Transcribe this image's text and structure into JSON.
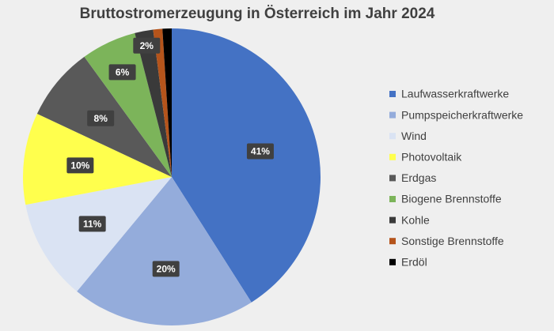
{
  "chart_data": {
    "type": "pie",
    "title": "Bruttostromerzeugung in Österreich im Jahr 2024",
    "categories": [
      "Laufwasserkraftwerke",
      "Pumpspeicherkraftwerke",
      "Wind",
      "Photovoltaik",
      "Erdgas",
      "Biogene Brennstoffe",
      "Kohle",
      "Sonstige Brennstoffe",
      "Erdöl"
    ],
    "values": [
      41,
      20,
      11,
      10,
      8,
      6,
      2,
      1,
      1
    ],
    "value_labels": [
      "41%",
      "20%",
      "11%",
      "10%",
      "8%",
      "6%",
      "2%",
      null,
      null
    ],
    "colors": [
      "#4472c4",
      "#94acdb",
      "#dae3f3",
      "#ffff4d",
      "#595959",
      "#7cb45a",
      "#3a3a3a",
      "#b5541b",
      "#000000"
    ],
    "legend": "right"
  }
}
